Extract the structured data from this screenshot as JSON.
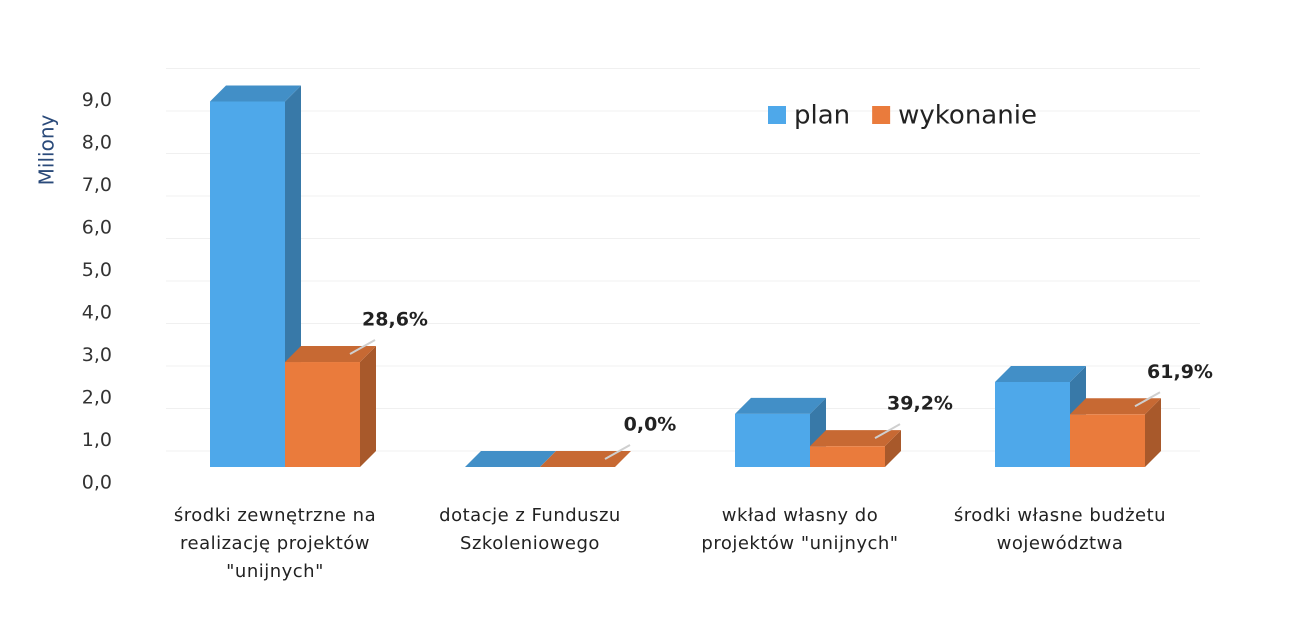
{
  "chart_data": {
    "type": "bar3d",
    "y_axis_label": "Miliony",
    "categories": [
      "środki zewnętrzne na realizację projektów \"unijnych\"",
      "dotacje z Funduszu Szkoleniowego",
      "wkład własny do projektów \"unijnych\"",
      "środki własne budżetu województwa"
    ],
    "series": [
      {
        "name": "plan",
        "color": "#4ea8ea",
        "values": [
          8.6,
          0,
          1.25,
          2.0
        ]
      },
      {
        "name": "wykonanie",
        "color": "#ea7b3c",
        "values": [
          2.47,
          0,
          0.49,
          1.24
        ]
      }
    ],
    "data_labels": [
      "28,6%",
      "0,0%",
      "39,2%",
      "61,9%"
    ],
    "ylim": [
      0,
      9
    ],
    "yticks": [
      {
        "value": 0,
        "label": "0,0"
      },
      {
        "value": 1,
        "label": "1,0"
      },
      {
        "value": 2,
        "label": "2,0"
      },
      {
        "value": 3,
        "label": "3,0"
      },
      {
        "value": 4,
        "label": "4,0"
      },
      {
        "value": 5,
        "label": "5,0"
      },
      {
        "value": 6,
        "label": "6,0"
      },
      {
        "value": 7,
        "label": "7,0"
      },
      {
        "value": 8,
        "label": "8,0"
      },
      {
        "value": 9,
        "label": "9,0"
      }
    ],
    "grid": true,
    "legend_position": "top-right"
  }
}
